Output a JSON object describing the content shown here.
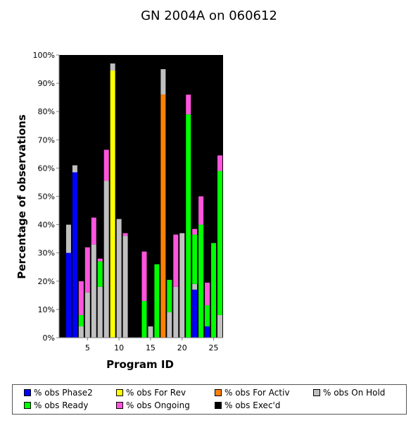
{
  "chart_data": {
    "type": "bar",
    "stacked": true,
    "title": "GN 2004A on 060612",
    "xlabel": "Program ID",
    "ylabel": "Percentage of observations",
    "ylim": [
      0,
      100
    ],
    "y_ticks": [
      "0%",
      "10%",
      "20%",
      "30%",
      "40%",
      "50%",
      "60%",
      "70%",
      "80%",
      "90%",
      "100%"
    ],
    "x_tick_values": [
      5,
      10,
      15,
      20,
      25
    ],
    "categories": [
      1,
      2,
      3,
      4,
      5,
      6,
      7,
      8,
      9,
      10,
      11,
      12,
      13,
      14,
      15,
      16,
      17,
      18,
      19,
      20,
      21,
      22,
      23,
      24,
      25,
      26
    ],
    "legend_position": "bottom",
    "series": [
      {
        "name": "% obs Phase2",
        "color": "#0000ff",
        "values": [
          0,
          30,
          58.5,
          0,
          0,
          0,
          0,
          0,
          0,
          0,
          0,
          0,
          0,
          0,
          0,
          0,
          0,
          0,
          0,
          0,
          0,
          17,
          0,
          4,
          0,
          0
        ]
      },
      {
        "name": "% obs For Rev",
        "color": "#ffff00",
        "values": [
          0,
          0,
          0,
          0,
          0,
          0,
          0,
          0,
          94.5,
          0,
          0,
          0,
          0,
          0,
          0,
          0,
          0,
          0,
          0,
          0,
          0,
          0,
          0,
          0,
          0,
          0
        ]
      },
      {
        "name": "% obs For Activ",
        "color": "#ff8000",
        "values": [
          0,
          0,
          0,
          0,
          0,
          0,
          0,
          0,
          0,
          0,
          0,
          0,
          0,
          0,
          0,
          0,
          86,
          0,
          0,
          0,
          0,
          0,
          0,
          0,
          0,
          0
        ]
      },
      {
        "name": "% obs On Hold",
        "color": "#c0c0c0",
        "values": [
          0,
          10,
          2.5,
          4,
          16,
          33,
          18,
          55.5,
          2.5,
          42,
          36,
          0,
          0,
          0,
          4,
          0,
          9,
          9,
          18,
          37,
          0,
          2,
          0,
          0,
          0,
          8
        ]
      },
      {
        "name": "% obs Ready",
        "color": "#00ff00",
        "values": [
          0,
          0,
          0,
          4,
          0,
          0,
          9,
          0,
          0,
          0,
          0,
          0,
          0,
          13,
          0,
          26,
          0,
          11.5,
          0,
          0,
          79,
          17.5,
          40,
          7.5,
          33.5,
          51
        ]
      },
      {
        "name": "% obs Ongoing",
        "color": "#ff55dd",
        "values": [
          0,
          0,
          0,
          12,
          16,
          9.5,
          1,
          11,
          0,
          0,
          1,
          0,
          0,
          17.5,
          0,
          0,
          0,
          0,
          18.5,
          0,
          7,
          2,
          10,
          8,
          0,
          5.5
        ]
      },
      {
        "name": "% obs Exec'd",
        "color": "#000000",
        "values": [
          100,
          60,
          39,
          80,
          68,
          57.5,
          72,
          33.5,
          3,
          58,
          63,
          100,
          100,
          69.5,
          96,
          74,
          5,
          79.5,
          63.5,
          63,
          14,
          61.5,
          50,
          80.5,
          66.5,
          35.5
        ]
      }
    ]
  }
}
